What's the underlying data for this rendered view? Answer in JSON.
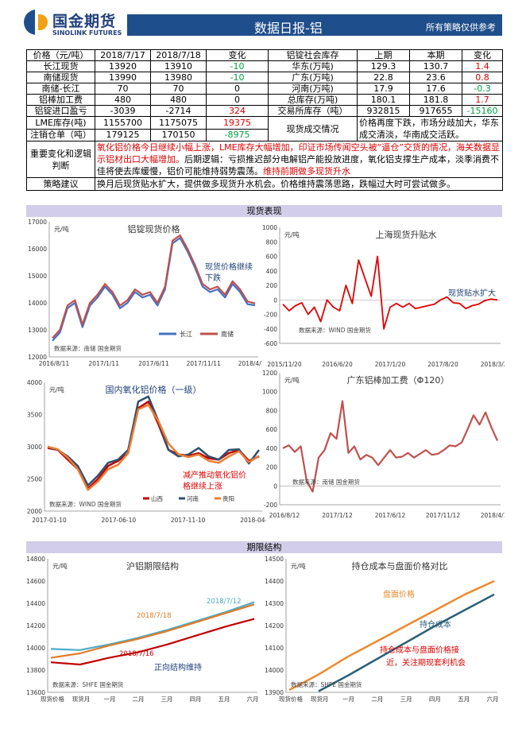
{
  "header": {
    "logo_cn": "国金期货",
    "logo_en": "SINOLINK FUTURES",
    "title": "数据日报-铝",
    "subtitle": "所有策略仅供参考"
  },
  "table": {
    "left_head": [
      "价格（元/吨）",
      "2018/7/17",
      "2018/7/18",
      "变化"
    ],
    "right_head": [
      "铝锭社会库存",
      "上期",
      "本期",
      "变化"
    ],
    "rows": [
      {
        "l": [
          "长江现货",
          "13920",
          "13910",
          "-10"
        ],
        "r": [
          "华东(万吨)",
          "129.3",
          "130.7",
          "1.4"
        ]
      },
      {
        "l": [
          "南储现货",
          "13990",
          "13980",
          "-10"
        ],
        "r": [
          "广东(万吨)",
          "22.8",
          "23.6",
          "0.8"
        ]
      },
      {
        "l": [
          "南储-长江",
          "70",
          "70",
          "0"
        ],
        "r": [
          "河南(万吨)",
          "17.9",
          "17.6",
          "-0.3"
        ]
      },
      {
        "l": [
          "铝棒加工费",
          "480",
          "480",
          "0"
        ],
        "r": [
          "总库存(万吨)",
          "180.1",
          "181.8",
          "1.7"
        ]
      },
      {
        "l": [
          "铝锭进口盈亏",
          "-3039",
          "-2714",
          "324"
        ],
        "r": [
          "交易所库存（吨）",
          "932815",
          "917655",
          "-15160"
        ]
      }
    ],
    "lme_row": [
      "LME库存(吨)",
      "1155700",
      "1175075",
      "19375"
    ],
    "warrant_row": [
      "注销仓单（吨）",
      "179125",
      "170150",
      "-8975"
    ],
    "spot_label": "现货成交情况",
    "spot_text": "价格再度下跌，市场分歧加大，华东成交清淡，华南成交活跃。",
    "change_label": "重要变化和逻辑判断",
    "change_red": "氧化铝价格今日继续小幅上涨，LME库存大幅增加，印证市场传闻空头被“逼仓”交货的情况，海关数据显示铝材出口大幅增加。",
    "change_black": "后期逻辑：亏损推迟部分电解铝产能投放进度，氧化铝支撑生产成本，淡季消费不佳将使去库缓慢，铝价可能维持弱势震荡。",
    "change_red2": "维持前期做多现货升水",
    "strategy_label": "策略建议",
    "strategy_text": "换月后现货贴水扩大，提供做多现货升水机会。价格维持震荡思路，跌幅过大时可尝试做多。"
  },
  "sections": {
    "spot": "现货表现",
    "term": "期限结构"
  },
  "charts": {
    "c1": {
      "title": "铝锭现货价格",
      "unit": "元/吨",
      "note": "现货价格继续下跌",
      "source": "数据来源：南储 国金期货",
      "legend": [
        "长江",
        "南储"
      ],
      "yticks": [
        "17000",
        "16000",
        "15000",
        "14000",
        "13000",
        "12000"
      ],
      "xticks": [
        "2016/8/11",
        "2017/1/11",
        "2017/6/11",
        "2017/11/11",
        "2018/4/11"
      ]
    },
    "c2": {
      "title": "上海现货升贴水",
      "unit": "元/吨",
      "note": "现货贴水扩大",
      "source": "数据来源：WIND 国金期货",
      "yticks": [
        "1000",
        "800",
        "600",
        "400",
        "200",
        "0",
        "-200",
        "-400",
        "-600"
      ],
      "xticks": [
        "2015/11/20",
        "2016/6/20",
        "2017/1/20",
        "2017/8/20",
        "2018/3/20"
      ]
    },
    "c3": {
      "title": "国内氧化铝价格（一级）",
      "unit": "元/吨",
      "note": "减产推动氧化铝价格继续上涨",
      "source": "数据来源：WIND 国金期货",
      "legend": [
        "山西",
        "河南",
        "贵阳"
      ],
      "yticks": [
        "4000",
        "3500",
        "3000",
        "2500",
        "2000"
      ],
      "xticks": [
        "2017-01-10",
        "2017-06-10",
        "2017-11-10",
        "2018-04-10"
      ]
    },
    "c4": {
      "title": "广东铝棒加工费（Φ120）",
      "unit": "元/吨",
      "source": "数据来源：南储 国金期货",
      "yticks": [
        "1200",
        "1000",
        "800",
        "600",
        "400",
        "200",
        "0",
        "-200"
      ],
      "xticks": [
        "2016/8/12",
        "2017/1/12",
        "2017/6/12",
        "2017/11/12",
        "2018/4/12"
      ]
    },
    "c5": {
      "title": "沪铝期限结构",
      "unit": "元/吨",
      "note": "正向结构维持",
      "source": "数据来源：SHFE 国金期货",
      "labels": [
        "2018/7/12",
        "2018/7/18",
        "2018/7/16"
      ],
      "yticks": [
        "14800",
        "14600",
        "14400",
        "14200",
        "14000",
        "13800",
        "13600"
      ],
      "xticks": [
        "现货价格",
        "现货月",
        "一月",
        "二月",
        "三月",
        "四月",
        "五月",
        "六月"
      ]
    },
    "c6": {
      "title": "持仓成本与盘面价格对比",
      "unit": "元/吨",
      "note1": "持仓成本与盘面价格接",
      "note2": "近，关注期现套利机会",
      "source": "数据来源：SHFE 国金期货",
      "legend": [
        "盘面价格",
        "持仓成本"
      ],
      "yticks": [
        "14500",
        "14400",
        "14300",
        "14200",
        "14100",
        "14000",
        "13900"
      ],
      "xticks": [
        "现货价格",
        "现货月",
        "一月",
        "二月",
        "三月",
        "四月",
        "五月",
        "六月"
      ]
    }
  },
  "chart_data": [
    {
      "type": "line",
      "title": "铝锭现货价格",
      "ylim": [
        12000,
        17000
      ],
      "series": [
        {
          "name": "长江",
          "values": [
            12600,
            12900,
            13800,
            14000,
            13100,
            13900,
            14200,
            14600,
            14300,
            13800,
            14000,
            14400,
            14200,
            14300,
            13900,
            14500,
            16200,
            16400,
            15900,
            15300,
            14600,
            14400,
            14500,
            14200,
            14700,
            14400,
            13950,
            13910
          ]
        },
        {
          "name": "南储",
          "values": [
            12700,
            13000,
            13900,
            14100,
            13200,
            14000,
            14300,
            14700,
            14400,
            13900,
            14100,
            14500,
            14300,
            14400,
            14000,
            14600,
            16300,
            16500,
            16000,
            15400,
            14700,
            14500,
            14600,
            14300,
            14800,
            14500,
            14050,
            13980
          ]
        }
      ]
    },
    {
      "type": "line",
      "title": "上海现货升贴水",
      "ylim": [
        -600,
        1000
      ],
      "series": [
        {
          "values": [
            -60,
            -150,
            -80,
            -40,
            -200,
            -100,
            -300,
            0,
            -100,
            -150,
            200,
            -50,
            550,
            300,
            50,
            600,
            -400,
            -100,
            -50,
            -100,
            -50,
            -120,
            -100,
            -80,
            -60,
            0,
            40,
            -40,
            -50,
            -120,
            -80,
            -60,
            -10,
            10,
            0
          ]
        }
      ]
    },
    {
      "type": "line",
      "title": "国内氧化铝价格（一级）",
      "ylim": [
        2000,
        4000
      ],
      "series": [
        {
          "name": "山西",
          "values": [
            2980,
            2950,
            2800,
            2650,
            2350,
            2500,
            2700,
            2780,
            2900,
            3600,
            3700,
            3350,
            2950,
            2880,
            2860,
            2900,
            2820,
            2800,
            2900,
            2950,
            2780,
            2850
          ]
        },
        {
          "name": "河南",
          "values": [
            3000,
            2950,
            2850,
            2700,
            2400,
            2550,
            2750,
            2800,
            2950,
            3700,
            3780,
            3400,
            2950,
            2850,
            2880,
            2980,
            2850,
            2800,
            2950,
            2960,
            2740,
            2950
          ]
        },
        {
          "name": "贵阳",
          "values": [
            3000,
            2960,
            2830,
            2650,
            2330,
            2460,
            2650,
            2720,
            2900,
            3580,
            3650,
            3400,
            3050,
            2880,
            2840,
            2880,
            2780,
            2750,
            2850,
            2930,
            2760,
            2860
          ]
        }
      ]
    },
    {
      "type": "line",
      "title": "广东铝棒加工费（Φ120）",
      "ylim": [
        -200,
        1200
      ],
      "series": [
        {
          "values": [
            400,
            430,
            360,
            420,
            50,
            -60,
            300,
            380,
            560,
            500,
            900,
            350,
            420,
            280,
            330,
            300,
            220,
            300,
            380,
            300,
            310,
            350,
            300,
            340,
            380,
            330,
            340,
            380,
            430,
            420,
            460,
            600,
            750,
            650,
            780,
            620,
            480
          ]
        }
      ]
    },
    {
      "type": "line",
      "title": "沪铝期限结构",
      "categories": [
        "现货价格",
        "现货月",
        "一月",
        "二月",
        "三月",
        "四月",
        "五月",
        "六月"
      ],
      "ylim": [
        13600,
        14800
      ],
      "series": [
        {
          "name": "2018/7/12",
          "values": [
            13990,
            13980,
            14030,
            14090,
            14160,
            14240,
            14320,
            14410
          ]
        },
        {
          "name": "2018/7/18",
          "values": [
            13910,
            13950,
            14020,
            14080,
            14150,
            14230,
            14310,
            14390
          ]
        },
        {
          "name": "2018/7/16",
          "values": [
            13870,
            13850,
            13910,
            13960,
            14030,
            14110,
            14190,
            14260
          ]
        }
      ]
    },
    {
      "type": "line",
      "title": "持仓成本与盘面价格对比",
      "categories": [
        "现货价格",
        "现货月",
        "一月",
        "二月",
        "三月",
        "四月",
        "五月",
        "六月"
      ],
      "ylim": [
        13900,
        14500
      ],
      "series": [
        {
          "name": "盘面价格",
          "values": [
            13910,
            13980,
            14060,
            14130,
            14200,
            14270,
            14340,
            14400
          ]
        },
        {
          "name": "持仓成本",
          "values": [
            null,
            13905,
            13975,
            14050,
            14125,
            14200,
            14270,
            14340
          ]
        }
      ]
    }
  ]
}
